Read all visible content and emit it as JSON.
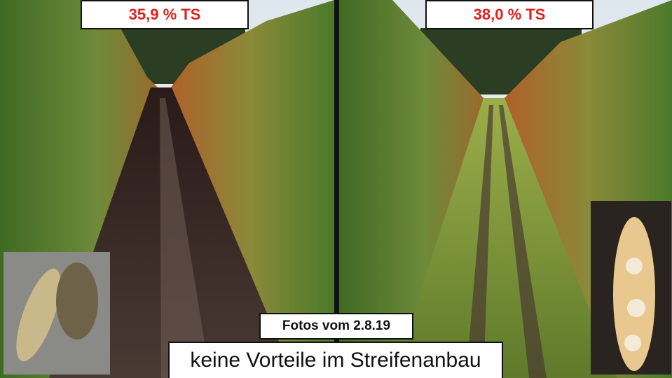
{
  "photos": [
    {
      "label": "35,9 % TS"
    },
    {
      "label": "38,0 % TS"
    }
  ],
  "caption": {
    "date": "Fotos vom 2.8.19",
    "text": "keine Vorteile im Streifenanbau"
  }
}
